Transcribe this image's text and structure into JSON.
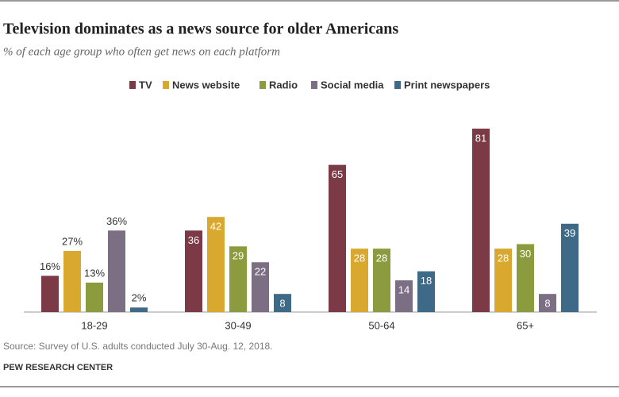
{
  "chart_data": {
    "type": "bar",
    "title": "Television dominates as a news source for older Americans",
    "subtitle": "% of each age group who often get news on each platform",
    "categories": [
      "18-29",
      "30-49",
      "50-64",
      "65+"
    ],
    "series": [
      {
        "name": "TV",
        "color": "#7b3a46",
        "values": [
          16,
          36,
          65,
          81
        ],
        "value_labels": [
          "16%",
          "36",
          "65",
          "81"
        ]
      },
      {
        "name": "News website",
        "color": "#d8a82f",
        "values": [
          27,
          42,
          28,
          28
        ],
        "value_labels": [
          "27%",
          "42",
          "28",
          "28"
        ]
      },
      {
        "name": "Radio",
        "color": "#8c9b3e",
        "values": [
          13,
          29,
          28,
          30
        ],
        "value_labels": [
          "13%",
          "29",
          "28",
          "30"
        ]
      },
      {
        "name": "Social media",
        "color": "#7d6f83",
        "values": [
          36,
          22,
          14,
          8
        ],
        "value_labels": [
          "36%",
          "22",
          "14",
          "8"
        ]
      },
      {
        "name": "Print newspapers",
        "color": "#3e6a87",
        "values": [
          2,
          8,
          18,
          39
        ],
        "value_labels": [
          "2%",
          "8",
          "18",
          "39"
        ]
      }
    ],
    "source": "Source: Survey of U.S. adults conducted July 30-Aug. 12, 2018.",
    "brand": "PEW RESEARCH CENTER"
  }
}
